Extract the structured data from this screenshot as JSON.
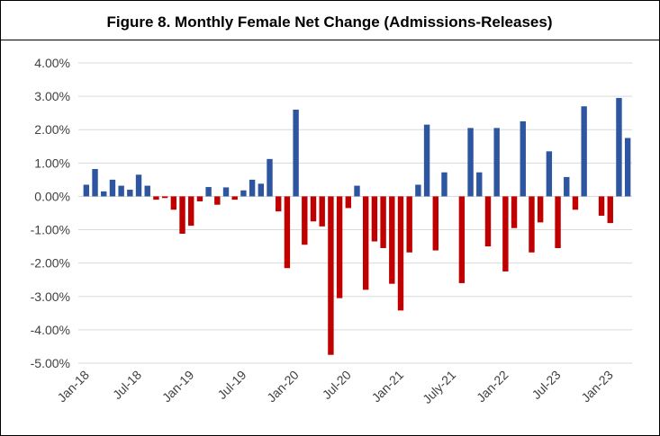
{
  "chart_data": {
    "type": "bar",
    "title": "Figure 8. Monthly Female Net Change (Admissions-Releases)",
    "categories": [
      "Jan-18",
      null,
      null,
      null,
      null,
      null,
      "Jul-18",
      null,
      null,
      null,
      null,
      null,
      "Jan-19",
      null,
      null,
      null,
      null,
      null,
      "Jul-19",
      null,
      null,
      null,
      null,
      null,
      "Jan-20",
      null,
      null,
      null,
      null,
      null,
      "Jul-20",
      null,
      null,
      null,
      null,
      null,
      "Jan-21",
      null,
      null,
      null,
      null,
      null,
      "July-21",
      null,
      null,
      null,
      null,
      null,
      "Jan-22",
      null,
      null,
      null,
      null,
      null,
      "Jul-23",
      null,
      null,
      null,
      null,
      null,
      "Jan-23",
      null,
      null
    ],
    "values": [
      0.35,
      0.82,
      0.15,
      0.5,
      0.32,
      0.2,
      0.65,
      0.32,
      -0.1,
      -0.05,
      -0.4,
      -1.12,
      -0.88,
      -0.15,
      0.28,
      -0.25,
      0.27,
      -0.1,
      0.18,
      0.5,
      0.38,
      1.12,
      -0.45,
      -2.15,
      2.6,
      -1.45,
      -0.75,
      -0.9,
      -4.75,
      -3.05,
      -0.35,
      0.32,
      -2.8,
      -1.35,
      -1.55,
      -2.62,
      -3.42,
      -1.68,
      0.35,
      2.15,
      -1.62,
      0.72,
      0,
      -2.6,
      2.05,
      0.72,
      -1.5,
      2.05,
      -2.25,
      -0.95,
      2.25,
      -1.68,
      -0.78,
      1.35,
      -1.55,
      0.58,
      -0.4,
      2.7,
      0,
      -0.58,
      -0.8,
      2.95,
      1.75
    ],
    "positive_color": "#2e56a0",
    "negative_color": "#c00000",
    "ylim": [
      -5,
      4
    ],
    "yticks": [
      {
        "value": -5,
        "label": "-5.00%"
      },
      {
        "value": -4,
        "label": "-4.00%"
      },
      {
        "value": -3,
        "label": "-3.00%"
      },
      {
        "value": -2,
        "label": "-2.00%"
      },
      {
        "value": -1,
        "label": "-1.00%"
      },
      {
        "value": 0,
        "label": "0.00%"
      },
      {
        "value": 1,
        "label": "1.00%"
      },
      {
        "value": 2,
        "label": "2.00%"
      },
      {
        "value": 3,
        "label": "3.00%"
      },
      {
        "value": 4,
        "label": "4.00%"
      }
    ],
    "grid": true
  }
}
